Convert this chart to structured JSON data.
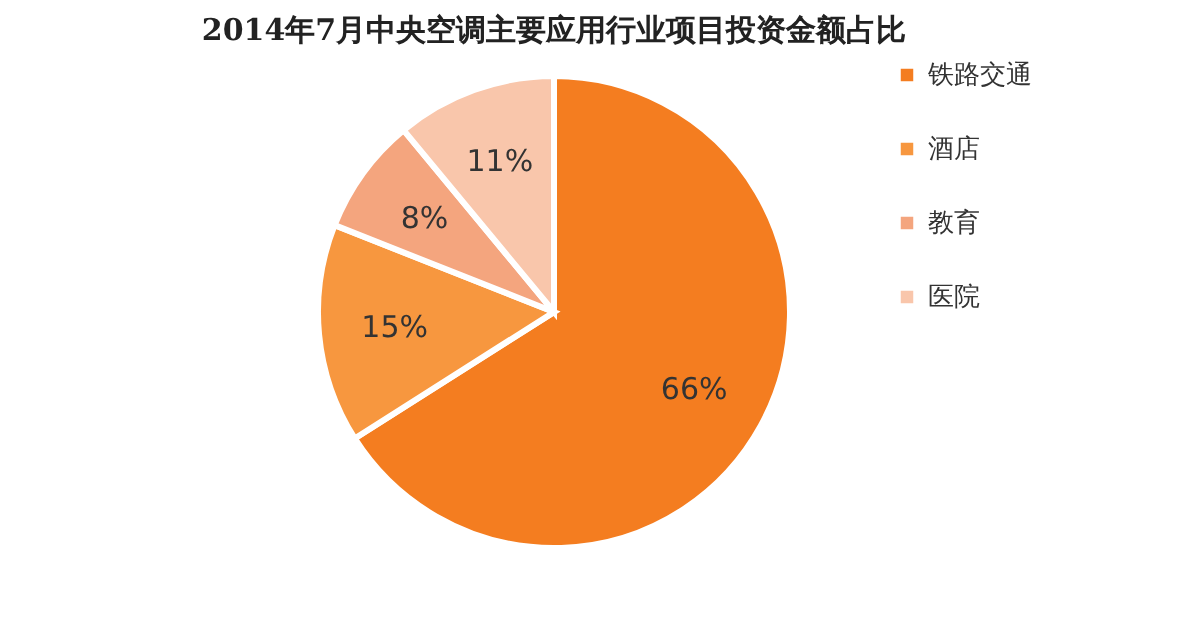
{
  "chart_data": {
    "type": "pie",
    "title": "2014年7月中央空调主要应用行业项目投资金额占比",
    "categories": [
      "铁路交通",
      "酒店",
      "教育",
      "医院"
    ],
    "values": [
      66,
      15,
      8,
      11
    ],
    "colors": [
      "#f47d20",
      "#f7973f",
      "#f4a57e",
      "#f9c6ab"
    ],
    "value_labels": [
      "66%",
      "15%",
      "8%",
      "11%"
    ],
    "legend": "right"
  }
}
